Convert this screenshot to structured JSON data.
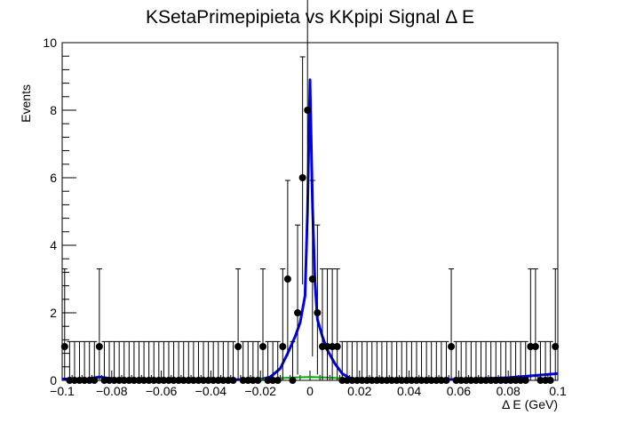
{
  "chart_data": {
    "type": "scatter",
    "title": "KSetaPrimepipieta vs KKpipi Signal Δ E",
    "xlabel": "Δ E (GeV)",
    "ylabel": "Events",
    "xlim": [
      -0.1,
      0.1
    ],
    "ylim": [
      0,
      10
    ],
    "x_ticks": [
      -0.1,
      -0.08,
      -0.06,
      -0.04,
      -0.02,
      0,
      0.02,
      0.04,
      0.06,
      0.08,
      0.1
    ],
    "x_tick_labels": [
      "−0.1",
      "−0.08",
      "−0.06",
      "−0.04",
      "−0.02",
      "0",
      "0.02",
      "0.04",
      "0.06",
      "0.08",
      "0.1"
    ],
    "y_ticks": [
      0,
      2,
      4,
      6,
      8,
      10
    ],
    "y_tick_labels": [
      "0",
      "2",
      "4",
      "6",
      "8",
      "10"
    ],
    "grid": false,
    "legend": "none",
    "bin_width": 0.002,
    "series": [
      {
        "kind": "points",
        "color": "#000000",
        "x": [
          -0.099,
          -0.097,
          -0.095,
          -0.093,
          -0.091,
          -0.089,
          -0.087,
          -0.085,
          -0.083,
          -0.081,
          -0.079,
          -0.077,
          -0.075,
          -0.073,
          -0.071,
          -0.069,
          -0.067,
          -0.065,
          -0.063,
          -0.061,
          -0.059,
          -0.057,
          -0.055,
          -0.053,
          -0.051,
          -0.049,
          -0.047,
          -0.045,
          -0.043,
          -0.041,
          -0.039,
          -0.037,
          -0.035,
          -0.033,
          -0.031,
          -0.029,
          -0.027,
          -0.025,
          -0.023,
          -0.021,
          -0.019,
          -0.017,
          -0.015,
          -0.013,
          -0.011,
          -0.009,
          -0.007,
          -0.005,
          -0.003,
          -0.001,
          0.001,
          0.003,
          0.005,
          0.007,
          0.009,
          0.011,
          0.013,
          0.015,
          0.017,
          0.019,
          0.021,
          0.023,
          0.025,
          0.027,
          0.029,
          0.031,
          0.033,
          0.035,
          0.037,
          0.039,
          0.041,
          0.043,
          0.045,
          0.047,
          0.049,
          0.051,
          0.053,
          0.055,
          0.057,
          0.059,
          0.061,
          0.063,
          0.065,
          0.067,
          0.069,
          0.071,
          0.073,
          0.075,
          0.077,
          0.079,
          0.081,
          0.083,
          0.085,
          0.087,
          0.089,
          0.091,
          0.093,
          0.095,
          0.097,
          0.099
        ],
        "y": [
          1,
          0,
          0,
          0,
          0,
          0,
          0,
          1,
          0,
          0,
          0,
          0,
          0,
          0,
          0,
          0,
          0,
          0,
          0,
          0,
          0,
          0,
          0,
          0,
          0,
          0,
          0,
          0,
          0,
          0,
          0,
          0,
          0,
          0,
          0,
          1,
          0,
          0,
          0,
          0,
          1,
          0,
          0,
          0,
          1,
          3,
          0,
          2,
          6,
          8,
          3,
          2,
          1,
          1,
          1,
          1,
          0,
          0,
          0,
          0,
          0,
          0,
          0,
          0,
          0,
          0,
          0,
          0,
          0,
          0,
          0,
          0,
          0,
          0,
          0,
          0,
          0,
          0,
          1,
          0,
          0,
          0,
          0,
          0,
          0,
          0,
          0,
          0,
          0,
          0,
          0,
          0,
          0,
          0,
          1,
          1,
          0,
          0,
          0,
          1
        ],
        "errors": "poisson"
      },
      {
        "kind": "curve",
        "color": "#0000ee",
        "x": [
          -0.1,
          -0.09,
          -0.085,
          -0.08,
          -0.06,
          -0.04,
          -0.03,
          -0.02,
          -0.016,
          -0.012,
          -0.009,
          -0.006,
          -0.004,
          -0.002,
          -0.001,
          0,
          0.001,
          0.002,
          0.003,
          0.005,
          0.007,
          0.01,
          0.013,
          0.016,
          0.02,
          0.025,
          0.03,
          0.04,
          0.05,
          0.06,
          0.07,
          0.08,
          0.09,
          0.1
        ],
        "y": [
          0.04,
          0.04,
          0.1,
          0.05,
          0.01,
          0.02,
          0.02,
          0.03,
          0.1,
          0.35,
          0.8,
          1.3,
          1.7,
          2.5,
          5.0,
          8.9,
          5.2,
          2.9,
          1.8,
          1.3,
          0.9,
          0.5,
          0.2,
          0.07,
          0.02,
          0.0,
          0.0,
          0.0,
          0.02,
          0.03,
          0.05,
          0.08,
          0.14,
          0.2
        ]
      },
      {
        "kind": "curve",
        "color": "#00aa00",
        "x": [
          -0.024,
          -0.02,
          -0.015,
          -0.01,
          -0.005,
          0,
          0.005,
          0.01,
          0.015,
          0.02,
          0.024
        ],
        "y": [
          0.02,
          0.03,
          0.05,
          0.07,
          0.09,
          0.1,
          0.09,
          0.07,
          0.05,
          0.03,
          0.02
        ]
      }
    ]
  }
}
